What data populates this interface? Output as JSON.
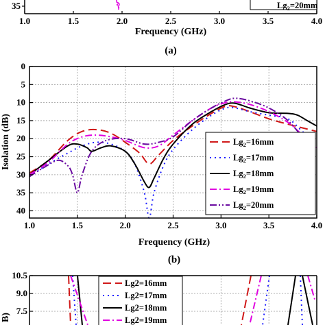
{
  "chart_data": [
    {
      "panel_label": "",
      "type": "line",
      "xlim": [
        1.0,
        4.0
      ],
      "ylim": [
        0,
        35
      ],
      "visible_y_tick": "35",
      "x_ticks": [
        "1.0",
        "1.5",
        "2.0",
        "2.5",
        "3.0",
        "3.5",
        "4.0"
      ],
      "xlabel": "Frequency (GHz)",
      "legend_partial": {
        "main": "Lg",
        "sub": "2",
        "rest": "=20mm"
      },
      "colors": {
        "magenta": "#e000e0"
      }
    },
    {
      "panel_label": "(a)"
    },
    {
      "panel_label": "(b)",
      "type": "line",
      "xlabel": "Frequency (GHz)",
      "ylabel": "Isolation (dB)",
      "xlim": [
        1.0,
        4.0
      ],
      "ylim": [
        0,
        42
      ],
      "y_inverted": true,
      "x_ticks": [
        "1.0",
        "1.5",
        "2.0",
        "2.5",
        "3.0",
        "3.5",
        "4.0"
      ],
      "y_ticks": [
        "0",
        "5",
        "10",
        "15",
        "20",
        "25",
        "30",
        "35",
        "40"
      ],
      "grid": true,
      "legend_position": "right",
      "series": [
        {
          "name_main": "Lg",
          "name_sub": "2",
          "name_rest": "=16mm",
          "color": "#d01818",
          "dash": "12,6",
          "x": [
            1.0,
            1.2,
            1.4,
            1.55,
            1.7,
            1.85,
            2.0,
            2.15,
            2.25,
            2.35,
            2.5,
            2.7,
            2.9,
            3.05,
            3.15,
            3.3,
            3.5,
            3.7,
            3.85,
            4.0
          ],
          "y": [
            29.5,
            26.0,
            20.5,
            18.0,
            17.5,
            18.5,
            21.0,
            24.0,
            27.0,
            24.5,
            20.5,
            16.5,
            13.0,
            11.0,
            11.2,
            12.5,
            14.5,
            16.0,
            17.0,
            18.0
          ]
        },
        {
          "name_main": "Lg",
          "name_sub": "2",
          "name_rest": "=17mm",
          "color": "#1a1aff",
          "dash": "2,5",
          "x": [
            1.0,
            1.2,
            1.4,
            1.55,
            1.7,
            1.85,
            2.0,
            2.1,
            2.2,
            2.25,
            2.3,
            2.4,
            2.5,
            2.7,
            2.9,
            3.05,
            3.15,
            3.3,
            3.5,
            3.7,
            3.85,
            4.0
          ],
          "y": [
            30.5,
            27.0,
            24.0,
            22.0,
            21.0,
            21.5,
            23.5,
            27.0,
            35.0,
            42.5,
            35.0,
            27.5,
            23.0,
            17.5,
            13.5,
            11.5,
            11.5,
            12.5,
            13.5,
            14.5,
            18.0,
            21.5
          ]
        },
        {
          "name_main": "Lg",
          "name_sub": "2",
          "name_rest": "=18mm",
          "color": "#000000",
          "dash": "",
          "x": [
            1.0,
            1.2,
            1.4,
            1.5,
            1.6,
            1.65,
            1.75,
            1.85,
            2.0,
            2.1,
            2.2,
            2.25,
            2.3,
            2.4,
            2.5,
            2.7,
            2.9,
            3.05,
            3.15,
            3.3,
            3.5,
            3.7,
            3.8,
            3.9,
            4.0
          ],
          "y": [
            30.0,
            26.0,
            22.0,
            21.5,
            22.5,
            23.5,
            22.5,
            22.0,
            23.5,
            27.0,
            32.0,
            33.5,
            31.0,
            25.5,
            21.5,
            16.0,
            12.5,
            10.5,
            10.2,
            11.5,
            12.8,
            13.0,
            13.5,
            15.0,
            16.5
          ]
        },
        {
          "name_main": "Lg",
          "name_sub": "2",
          "name_rest": "=19mm",
          "color": "#e000e0",
          "dash": "10,4,2,4",
          "x": [
            1.0,
            1.2,
            1.4,
            1.55,
            1.7,
            1.85,
            2.0,
            2.2,
            2.35,
            2.5,
            2.7,
            2.9,
            3.05,
            3.15,
            3.3,
            3.5,
            3.7,
            3.85,
            4.0
          ],
          "y": [
            30.0,
            26.5,
            21.5,
            19.5,
            19.0,
            19.5,
            20.5,
            22.5,
            22.0,
            19.0,
            15.0,
            11.5,
            10.0,
            9.8,
            10.5,
            12.5,
            15.5,
            19.0,
            22.5
          ]
        },
        {
          "name_main": "Lg",
          "name_sub": "2",
          "name_rest": "=20mm",
          "color": "#6a0aa0",
          "dash": "10,3,2,3,2,3",
          "x": [
            1.0,
            1.15,
            1.3,
            1.4,
            1.45,
            1.5,
            1.55,
            1.65,
            1.8,
            2.0,
            2.2,
            2.35,
            2.5,
            2.7,
            2.9,
            3.05,
            3.15,
            3.3,
            3.5,
            3.7,
            3.85,
            4.0
          ],
          "y": [
            30.5,
            28.0,
            26.0,
            27.5,
            30.0,
            35.0,
            30.0,
            23.5,
            20.5,
            20.0,
            21.5,
            21.0,
            19.5,
            15.0,
            11.5,
            9.5,
            8.8,
            9.5,
            11.5,
            15.0,
            19.5,
            23.0
          ]
        }
      ]
    },
    {
      "panel_label": "",
      "type": "line",
      "ylim": [
        6.0,
        10.5
      ],
      "y_ticks": [
        "10.5",
        "9.0",
        "7.5"
      ],
      "ylabel_partial": "B)",
      "series": [
        {
          "name": "Lg2=16mm",
          "color": "#d01818",
          "dash": "12,6"
        },
        {
          "name": "Lg2=17mm",
          "color": "#1a1aff",
          "dash": "2,5"
        },
        {
          "name": "Lg2=18mm",
          "color": "#000000",
          "dash": ""
        },
        {
          "name": "Lg2=19mm",
          "color": "#e000e0",
          "dash": "10,4,2,4"
        }
      ]
    }
  ]
}
